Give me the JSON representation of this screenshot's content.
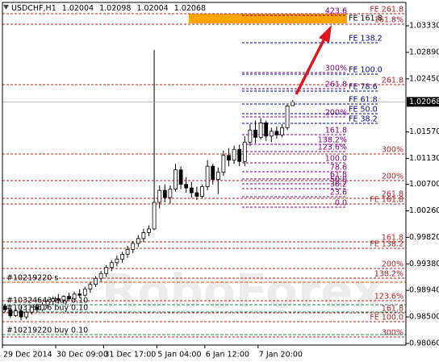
{
  "chart_data": {
    "type": "candlestick",
    "title": "USDCHF,H1",
    "watermark": "RoboForex",
    "categories": [
      "29 Dec 2014",
      null,
      null,
      null,
      null,
      null,
      null,
      null,
      null,
      null,
      "30 Dec 09:00",
      null,
      null,
      null,
      null,
      null,
      null,
      null,
      null,
      "31 Dec 17:00",
      null,
      null,
      null,
      null,
      null,
      null,
      null,
      null,
      null,
      "5 Jan 04:00",
      null,
      null,
      null,
      null,
      null,
      null,
      null,
      null,
      "6 Jan 12:00",
      null,
      null,
      null,
      null,
      null,
      null,
      null,
      null,
      null,
      "7 Jan 20:00",
      null,
      null,
      null,
      null,
      null,
      null
    ],
    "open": [
      0.9868,
      0.9862,
      0.9852,
      0.986,
      0.985,
      0.9858,
      0.9866,
      0.9862,
      0.987,
      0.9876,
      0.988,
      0.9878,
      0.9884,
      0.988,
      0.9888,
      0.9886,
      0.9896,
      0.9904,
      0.9914,
      0.9922,
      0.9932,
      0.994,
      0.9946,
      0.9954,
      0.9962,
      0.9972,
      0.998,
      0.999,
      0.9996,
      1.004,
      1.006,
      1.0048,
      1.0062,
      1.0094,
      1.007,
      1.0064,
      1.0056,
      1.005,
      1.0066,
      1.01,
      1.0078,
      1.009,
      1.0118,
      1.011,
      1.0128,
      1.0108,
      1.014,
      1.016,
      1.0148,
      1.0172,
      1.015,
      1.0158,
      1.0152,
      1.0164,
      1.02004
    ],
    "high": [
      0.9872,
      0.9866,
      0.9864,
      0.9868,
      0.9862,
      0.987,
      0.9872,
      0.9874,
      0.988,
      0.9884,
      0.9888,
      0.9886,
      0.989,
      0.9892,
      0.9896,
      0.99,
      0.9908,
      0.9918,
      0.9926,
      0.9936,
      0.9944,
      0.9952,
      0.9958,
      0.9968,
      0.9976,
      0.9986,
      0.9996,
      1.0002,
      1.0293,
      1.0068,
      1.007,
      1.0068,
      1.0104,
      1.01,
      1.0082,
      1.0074,
      1.0066,
      1.007,
      1.011,
      1.0104,
      1.0098,
      1.0126,
      1.013,
      1.0134,
      1.0136,
      1.015,
      1.017,
      1.0176,
      1.018,
      1.0176,
      1.0164,
      1.0166,
      1.017,
      1.0202,
      1.02098
    ],
    "low": [
      0.9858,
      0.9848,
      0.985,
      0.9844,
      0.9846,
      0.9854,
      0.9858,
      0.986,
      0.9864,
      0.987,
      0.9872,
      0.9872,
      0.9876,
      0.9878,
      0.9882,
      0.9884,
      0.989,
      0.99,
      0.9908,
      0.9916,
      0.9926,
      0.9934,
      0.994,
      0.9948,
      0.9956,
      0.9966,
      0.9974,
      0.9984,
      0.9994,
      1.003,
      1.004,
      1.0038,
      1.0058,
      1.0062,
      1.0056,
      1.0048,
      1.0044,
      1.0046,
      1.006,
      1.007,
      1.0054,
      1.0084,
      1.01,
      1.0104,
      1.01,
      1.01,
      1.0134,
      1.0138,
      1.0144,
      1.0142,
      1.014,
      1.0146,
      1.0148,
      1.016,
      1.02004
    ],
    "close": [
      0.9862,
      0.9852,
      0.986,
      0.985,
      0.9858,
      0.9866,
      0.9862,
      0.987,
      0.9876,
      0.988,
      0.9878,
      0.9884,
      0.988,
      0.9888,
      0.9886,
      0.9896,
      0.9904,
      0.9914,
      0.9922,
      0.9932,
      0.994,
      0.9946,
      0.9954,
      0.9962,
      0.9972,
      0.998,
      0.999,
      0.9996,
      1.004,
      1.006,
      1.0048,
      1.0062,
      1.0094,
      1.007,
      1.0064,
      1.0056,
      1.005,
      1.0066,
      1.01,
      1.0078,
      1.009,
      1.0118,
      1.011,
      1.0128,
      1.0108,
      1.014,
      1.016,
      1.0148,
      1.0172,
      1.015,
      1.0158,
      1.0152,
      1.0164,
      1.02,
      1.02068
    ],
    "ylim": [
      0.98033,
      1.03718
    ],
    "yticks": [
      {
        "value": 1.0333,
        "label": "1.03330"
      },
      {
        "value": 1.0289,
        "label": "1.02890"
      },
      {
        "value": 1.0245,
        "label": "1.02450"
      },
      {
        "value": 1.0157,
        "label": "1.01570"
      },
      {
        "value": 1.0113,
        "label": "1.01130"
      },
      {
        "value": 1.007,
        "label": "1.00700"
      },
      {
        "value": 1.0026,
        "label": "1.00260"
      },
      {
        "value": 0.9982,
        "label": "0.99820"
      },
      {
        "value": 0.9938,
        "label": "0.99380"
      },
      {
        "value": 0.9894,
        "label": "0.98940"
      },
      {
        "value": 0.985,
        "label": "0.98500"
      },
      {
        "value": 0.9806,
        "label": "0.98060"
      }
    ],
    "candle_colors": {
      "up": "#ffffff",
      "down": "#000000",
      "outline": "#000000"
    },
    "zone": {
      "label": "FE 161.8",
      "values": [
        1.03531,
        1.0337
      ],
      "color": "#ffa500"
    },
    "levels": [
      {
        "label": "423.6",
        "value": 1.03504,
        "color": "#800080"
      },
      {
        "label": "300%",
        "value": 1.02554,
        "color": "#800080"
      },
      {
        "label": "261.8",
        "value": 1.02287,
        "color": "#800080"
      },
      {
        "label": "200%",
        "value": 1.01818,
        "color": "#800080"
      },
      {
        "label": "161.8",
        "value": 1.01524,
        "color": "#800080"
      },
      {
        "label": "138.2%",
        "value": 1.01364,
        "color": "#800080"
      },
      {
        "label": "123.6%",
        "value": 1.01243,
        "color": "#800080"
      },
      {
        "label": "100.0",
        "value": 1.01056,
        "color": "#800080"
      },
      {
        "label": "78.6",
        "value": 1.00909,
        "color": "#800080"
      },
      {
        "label": "61.8",
        "value": 1.00789,
        "color": "#800080"
      },
      {
        "label": "50.0",
        "value": 1.00708,
        "color": "#800080"
      },
      {
        "label": "38.2",
        "value": 1.00628,
        "color": "#800080"
      },
      {
        "label": "23.6",
        "value": 1.00494,
        "color": "#800080"
      },
      {
        "label": "0.0",
        "value": 1.0032,
        "color": "#800080"
      },
      {
        "label": "FE 138.2",
        "value": 1.03049,
        "color": "#00008b"
      },
      {
        "label": "FE 100.0",
        "value": 1.02527,
        "color": "#00008b"
      },
      {
        "label": "FE 78.6",
        "value": 1.02247,
        "color": "#00008b"
      },
      {
        "label": "FE 61.8",
        "value": 1.02033,
        "color": "#00008b"
      },
      {
        "label": "FE 50.0",
        "value": 1.01872,
        "color": "#00008b"
      },
      {
        "label": "FE 38.2",
        "value": 1.01712,
        "color": "#00008b"
      },
      {
        "label": "FE 261.8",
        "value": 1.03531,
        "color": "#b22222"
      },
      {
        "label": "161.8%",
        "value": 1.03357,
        "color": "#b22222"
      },
      {
        "label": "261.8",
        "value": 1.02354,
        "color": "#b22222"
      },
      {
        "label": "300%",
        "value": 1.01203,
        "color": "#b22222"
      },
      {
        "label": "200%",
        "value": 1.00762,
        "color": "#b22222"
      },
      {
        "label": "261.8",
        "value": 1.00467,
        "color": "#b22222"
      },
      {
        "label": "FE 161.8",
        "value": 1.00374,
        "color": "#b22222"
      },
      {
        "label": "161.8",
        "value": 0.99745,
        "color": "#b22222"
      },
      {
        "label": "FE 138.2",
        "value": 0.99638,
        "color": "#b22222"
      },
      {
        "label": "200%",
        "value": 0.99304,
        "color": "#b22222"
      },
      {
        "label": "138.2%",
        "value": 0.99143,
        "color": "#b22222"
      },
      {
        "label": "123.6%",
        "value": 0.98769,
        "color": "#b22222"
      },
      {
        "label": "161.8",
        "value": 0.98568,
        "color": "#b22222"
      },
      {
        "label": "FE 100.0",
        "value": 0.98421,
        "color": "#b22222"
      },
      {
        "label": "300%",
        "value": 0.98167,
        "color": "#b22222"
      }
    ],
    "orders": [
      {
        "label": "#10219220 s",
        "value": 0.99076,
        "color": "#ff4500"
      },
      {
        "label": "#10324643 buy 0.10",
        "value": 0.98702,
        "color": "#2e8b57"
      },
      {
        "label": "#10318506 buy 0.10",
        "value": 0.98581,
        "color": "#2e8b57"
      },
      {
        "label": "#10219220 buy 0.10",
        "value": 0.98207,
        "color": "#2e8b57"
      }
    ]
  }
}
